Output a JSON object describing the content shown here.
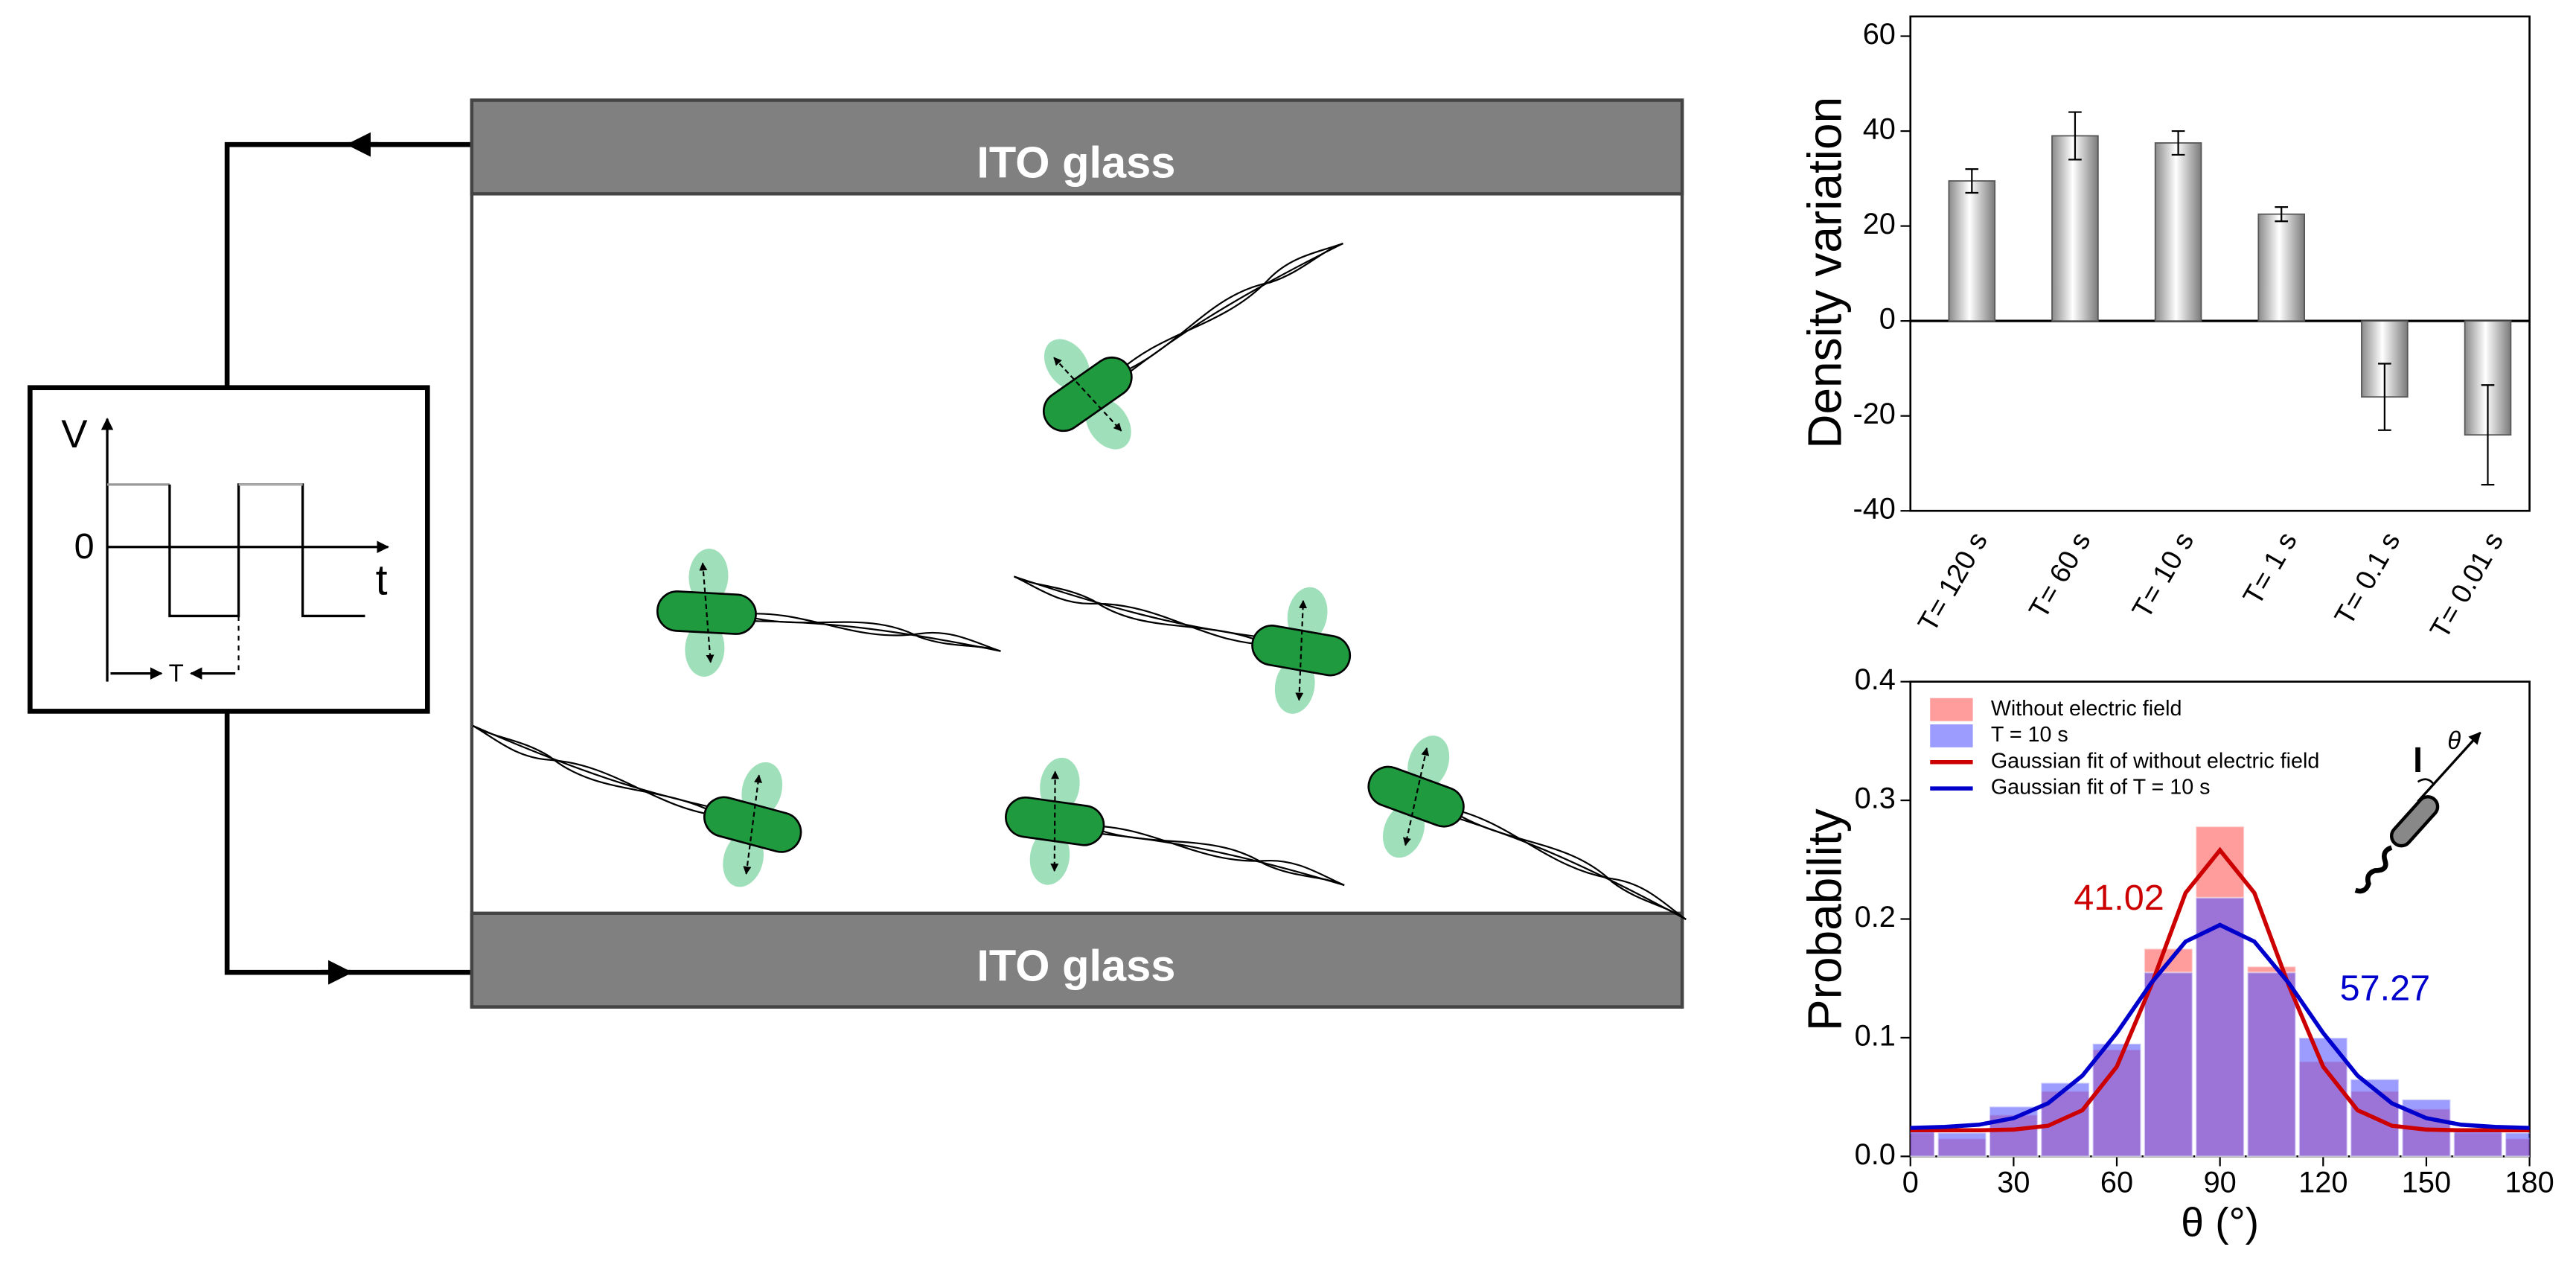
{
  "diagram": {
    "top_electrode": "ITO glass",
    "bottom_electrode": "ITO glass",
    "waveform_y_label": "V",
    "waveform_zero": "0",
    "waveform_x_label": "t",
    "waveform_period": "T"
  },
  "chart_data": [
    {
      "type": "bar",
      "ylabel": "Density variation",
      "categories": [
        "T= 120 s",
        "T= 60 s",
        "T= 10 s",
        "T= 1 s",
        "T= 0.1 s",
        "T= 0.01 s"
      ],
      "values": [
        29.5,
        39,
        37.5,
        22.5,
        -16,
        -24
      ],
      "errors": [
        2.5,
        5,
        2.5,
        1.5,
        7,
        10.5
      ],
      "ylim": [
        -40,
        60
      ],
      "yticks": [
        -40,
        -20,
        0,
        20,
        40,
        60
      ],
      "color": "#bdbdbd"
    },
    {
      "type": "histogram",
      "xlabel": "θ (°)",
      "ylabel": "Probability",
      "bins": [
        -7.5,
        7.5,
        22.5,
        37.5,
        52.5,
        67.5,
        82.5,
        97.5,
        112.5,
        127.5,
        142.5,
        157.5,
        172.5,
        187.5
      ],
      "series": [
        {
          "name": "Without electric field",
          "color": "#ff5a5a",
          "values": [
            0.02,
            0.015,
            0.035,
            0.055,
            0.09,
            0.175,
            0.278,
            0.16,
            0.08,
            0.055,
            0.04,
            0.02,
            0.015
          ]
        },
        {
          "name": "T = 10 s",
          "color": "#5a5aff",
          "values": [
            0.025,
            0.02,
            0.042,
            0.062,
            0.095,
            0.155,
            0.218,
            0.155,
            0.1,
            0.065,
            0.048,
            0.022,
            0.02
          ]
        }
      ],
      "fit_x": [
        0,
        10,
        20,
        30,
        40,
        50,
        60,
        70,
        80,
        90,
        100,
        110,
        120,
        130,
        140,
        150,
        160,
        170,
        180
      ],
      "fits": [
        {
          "name": "Gaussian fit of without electric field",
          "color": "#cc0000",
          "values": [
            0.022,
            0.022,
            0.022,
            0.0226,
            0.0258,
            0.0389,
            0.0756,
            0.144,
            0.222,
            0.258,
            0.222,
            0.144,
            0.0756,
            0.0389,
            0.0258,
            0.0226,
            0.022,
            0.022,
            0.022
          ]
        },
        {
          "name": "Gaussian fit of T = 10 s",
          "color": "#0000cc",
          "values": [
            0.024,
            0.0248,
            0.0267,
            0.0322,
            0.0447,
            0.068,
            0.104,
            0.146,
            0.181,
            0.195,
            0.181,
            0.146,
            0.104,
            0.068,
            0.0447,
            0.0322,
            0.0267,
            0.0248,
            0.024
          ]
        }
      ],
      "annotations": [
        {
          "text": "41.02",
          "color": "#cc0000"
        },
        {
          "text": "57.27",
          "color": "#0000cc"
        }
      ],
      "inset_label": "θ",
      "xlim": [
        0,
        180
      ],
      "xticks": [
        0,
        30,
        60,
        90,
        120,
        150,
        180
      ],
      "ylim": [
        0,
        0.4
      ],
      "yticks": [
        {
          "value": 0,
          "label": "0.0"
        },
        0.1,
        0.2,
        0.3,
        0.4
      ]
    }
  ]
}
